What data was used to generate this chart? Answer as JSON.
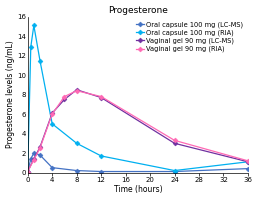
{
  "title": "Progesterone",
  "xlabel": "Time (hours)",
  "ylabel": "Progesterone levels (ng/mL)",
  "ylim": [
    0,
    16
  ],
  "xlim": [
    0,
    36
  ],
  "xticks": [
    0,
    4,
    8,
    12,
    16,
    20,
    24,
    28,
    32,
    36
  ],
  "yticks": [
    0,
    2,
    4,
    6,
    8,
    10,
    12,
    14,
    16
  ],
  "series": [
    {
      "label": "Oral capsule 100 mg (LC-MS)",
      "color": "#4472c4",
      "marker": "D",
      "markersize": 2.5,
      "linewidth": 0.9,
      "x": [
        0,
        0.5,
        1,
        2,
        4,
        8,
        12,
        24,
        36
      ],
      "y": [
        0.1,
        1.4,
        2.0,
        1.8,
        0.5,
        0.2,
        0.1,
        0.1,
        0.4
      ]
    },
    {
      "label": "Oral capsule 100 mg (RIA)",
      "color": "#00b0f0",
      "marker": "D",
      "markersize": 2.5,
      "linewidth": 0.9,
      "x": [
        0,
        0.5,
        1,
        2,
        4,
        8,
        12,
        24,
        36
      ],
      "y": [
        0.1,
        12.9,
        15.1,
        11.5,
        5.0,
        3.0,
        1.7,
        0.2,
        1.1
      ]
    },
    {
      "label": "Vaginal gel 90 mg (LC-MS)",
      "color": "#7030a0",
      "marker": "D",
      "markersize": 2.5,
      "linewidth": 0.9,
      "x": [
        0,
        1,
        2,
        4,
        6,
        8,
        12,
        24,
        36
      ],
      "y": [
        0.1,
        1.4,
        2.6,
        6.1,
        7.5,
        8.5,
        7.7,
        3.0,
        1.1
      ]
    },
    {
      "label": "Vaginal gel 90 mg (RIA)",
      "color": "#ff69b4",
      "marker": "D",
      "markersize": 2.5,
      "linewidth": 0.9,
      "x": [
        0,
        1,
        2,
        4,
        6,
        8,
        12,
        24,
        36
      ],
      "y": [
        0.1,
        1.3,
        2.5,
        6.0,
        7.8,
        8.4,
        7.8,
        3.3,
        1.2
      ]
    }
  ],
  "background_color": "#ffffff",
  "title_fontsize": 6.5,
  "axis_label_fontsize": 5.5,
  "tick_fontsize": 5,
  "legend_fontsize": 4.8
}
